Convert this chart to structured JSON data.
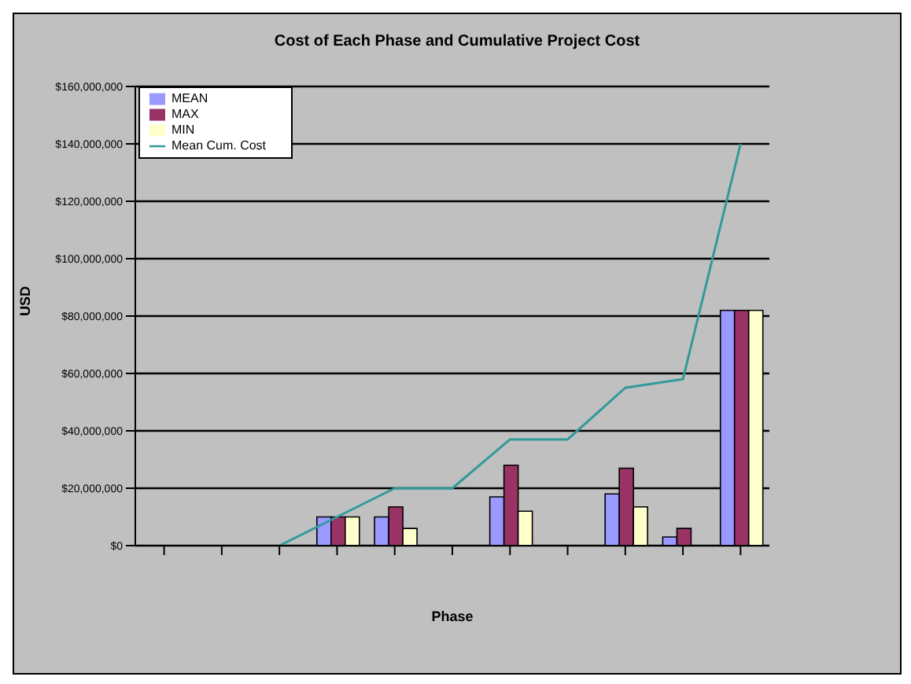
{
  "chart_data": {
    "type": "bar",
    "title": "Cost of Each Phase and Cumulative Project Cost",
    "xlabel": "Phase",
    "ylabel": "USD",
    "categories": [
      null,
      null,
      null,
      null,
      null,
      null,
      null,
      null,
      null,
      null,
      null
    ],
    "series": [
      {
        "name": "MEAN",
        "color": "#9999ff",
        "values": [
          null,
          null,
          null,
          10000000,
          10000000,
          null,
          17000000,
          null,
          18000000,
          3000000,
          82000000
        ]
      },
      {
        "name": "MAX",
        "color": "#993366",
        "values": [
          null,
          null,
          null,
          10000000,
          13500000,
          null,
          28000000,
          null,
          27000000,
          6000000,
          82000000
        ]
      },
      {
        "name": "MIN",
        "color": "#ffffcc",
        "values": [
          null,
          null,
          null,
          10000000,
          6000000,
          null,
          12000000,
          null,
          13500000,
          null,
          82000000
        ]
      },
      {
        "name": "Mean Cum. Cost",
        "type": "line",
        "color": "#339999",
        "values": [
          null,
          null,
          0,
          10000000,
          20000000,
          20000000,
          37000000,
          37000000,
          55000000,
          58000000,
          140000000
        ]
      }
    ],
    "ylim": [
      0,
      160000000
    ],
    "yticks": [
      {
        "value": 0,
        "label": "$0"
      },
      {
        "value": 20000000,
        "label": "$20,000,000"
      },
      {
        "value": 40000000,
        "label": "$40,000,000"
      },
      {
        "value": 60000000,
        "label": "$60,000,000"
      },
      {
        "value": 80000000,
        "label": "$80,000,000"
      },
      {
        "value": 100000000,
        "label": "$100,000,000"
      },
      {
        "value": 120000000,
        "label": "$120,000,000"
      },
      {
        "value": 140000000,
        "label": "$140,000,000"
      },
      {
        "value": 160000000,
        "label": "$160,000,000"
      }
    ],
    "grid": "y",
    "legend": "top left",
    "marker": "none"
  }
}
